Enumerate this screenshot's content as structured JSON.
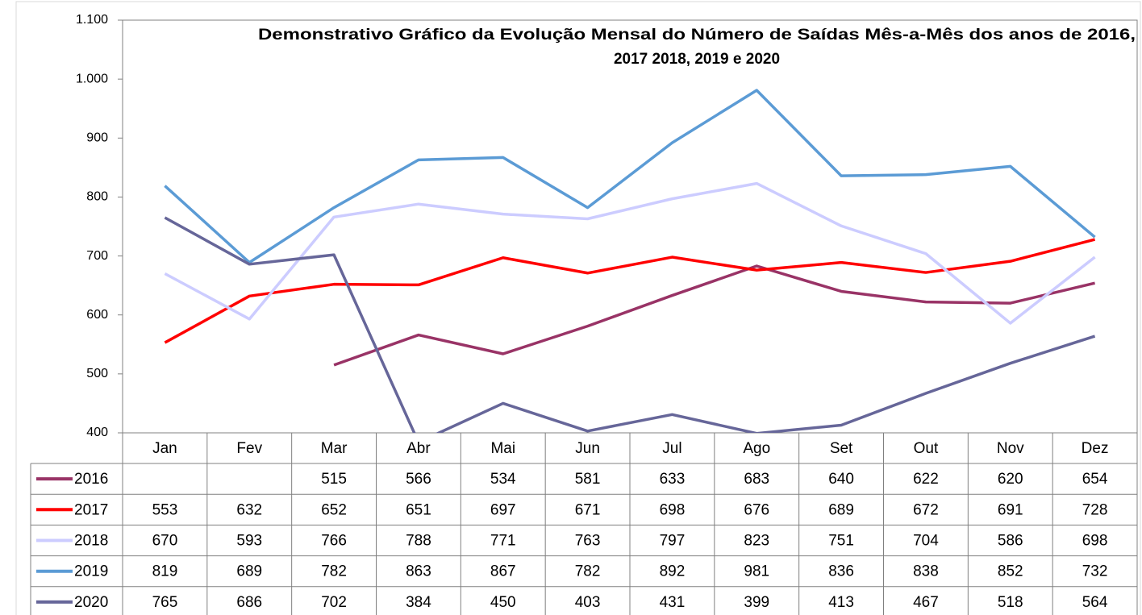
{
  "chart_data": {
    "type": "line",
    "title": [
      "Demonstrativo Gráfico da Evolução Mensal do Número de Saídas Mês-a-Mês dos anos de  2016,",
      "2017 2018, 2019 e 2020"
    ],
    "categories": [
      "Jan",
      "Fev",
      "Mar",
      "Abr",
      "Mai",
      "Jun",
      "Jul",
      "Ago",
      "Set",
      "Out",
      "Nov",
      "Dez"
    ],
    "series": [
      {
        "name": "2016",
        "color": "#993366",
        "values": [
          null,
          null,
          515,
          566,
          534,
          581,
          633,
          683,
          640,
          622,
          620,
          654
        ]
      },
      {
        "name": "2017",
        "color": "#ff0000",
        "values": [
          553,
          632,
          652,
          651,
          697,
          671,
          698,
          676,
          689,
          672,
          691,
          728
        ]
      },
      {
        "name": "2018",
        "color": "#ccccff",
        "values": [
          670,
          593,
          766,
          788,
          771,
          763,
          797,
          823,
          751,
          704,
          586,
          698
        ]
      },
      {
        "name": "2019",
        "color": "#5b9bd5",
        "values": [
          819,
          689,
          782,
          863,
          867,
          782,
          892,
          981,
          836,
          838,
          852,
          732
        ]
      },
      {
        "name": "2020",
        "color": "#666699",
        "values": [
          765,
          686,
          702,
          384,
          450,
          403,
          431,
          399,
          413,
          467,
          518,
          564
        ]
      }
    ],
    "ylim": [
      400,
      1100
    ],
    "yticks": [
      400,
      500,
      600,
      700,
      800,
      900,
      {
        "value": 1000,
        "label": "1.000"
      },
      {
        "value": 1100,
        "label": "1.100"
      }
    ],
    "grid": false
  }
}
